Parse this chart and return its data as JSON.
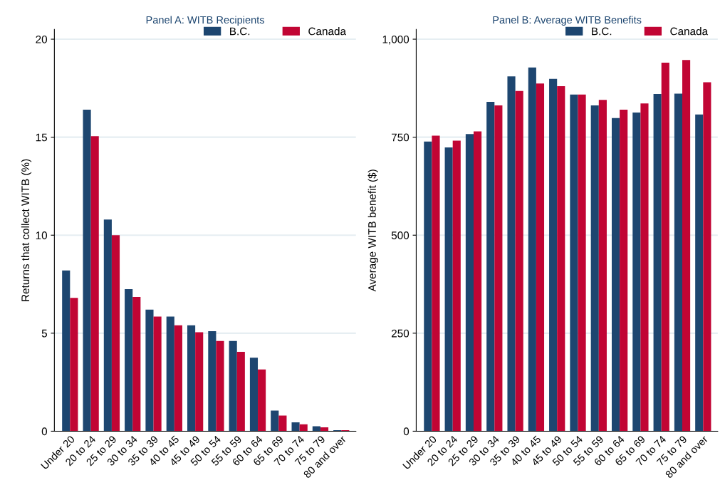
{
  "chart_data": [
    {
      "type": "bar",
      "title": "Panel A: WITB Recipients",
      "ylabel": "Returns that collect WITB (%)",
      "categories": [
        "Under 20",
        "20 to 24",
        "25 to 29",
        "30 to 34",
        "35 to 39",
        "40 to 45",
        "45 to 49",
        "50 to 54",
        "55 to 59",
        "60 to 64",
        "65 to 69",
        "70 to 74",
        "75 to 79",
        "80 and over"
      ],
      "series": [
        {
          "name": "B.C.",
          "color": "#1d4670",
          "values": [
            8.2,
            16.4,
            10.8,
            7.25,
            6.2,
            5.85,
            5.4,
            5.1,
            4.6,
            3.75,
            1.05,
            0.45,
            0.25,
            0.05
          ]
        },
        {
          "name": "Canada",
          "color": "#c10534",
          "values": [
            6.8,
            15.05,
            10.0,
            6.85,
            5.85,
            5.4,
            5.05,
            4.6,
            4.05,
            3.15,
            0.8,
            0.35,
            0.2,
            0.05
          ]
        }
      ],
      "ylim": [
        0,
        20.5
      ],
      "yticks": [
        0,
        5,
        10,
        15,
        20
      ],
      "grid": "y",
      "legend": "top right"
    },
    {
      "type": "bar",
      "title": "Panel B: Average WITB Benefits",
      "ylabel": "Average WITB benefit ($)",
      "categories": [
        "Under 20",
        "20 to 24",
        "25 to 29",
        "30 to 34",
        "35 to 39",
        "40 to 45",
        "45 to 49",
        "50 to 54",
        "55 to 59",
        "60 to 64",
        "65 to 69",
        "70 to 74",
        "75 to 79",
        "80 and over"
      ],
      "series": [
        {
          "name": "B.C.",
          "color": "#1d4670",
          "values": [
            739,
            724,
            758,
            840,
            905,
            928,
            899,
            859,
            831,
            799,
            813,
            860,
            861,
            808
          ]
        },
        {
          "name": "Canada",
          "color": "#c10534",
          "values": [
            754,
            741,
            765,
            831,
            868,
            887,
            880,
            859,
            845,
            820,
            836,
            940,
            947,
            890
          ]
        }
      ],
      "ylim": [
        0,
        1025
      ],
      "yticks": [
        0,
        250,
        500,
        750,
        {
          "value": 1000,
          "label": "1,000"
        }
      ],
      "grid": "y",
      "legend": "top right"
    }
  ]
}
